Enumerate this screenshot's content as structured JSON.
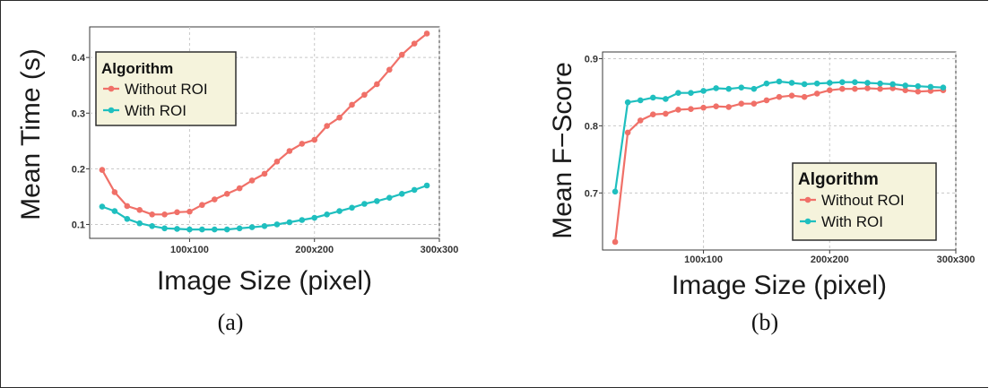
{
  "figure": {
    "colors": {
      "without_roi": "#f07068",
      "with_roi": "#1fbfbf",
      "legend_bg": "#f5f3dc",
      "grid": "#c8c8c8"
    }
  },
  "chart_data": [
    {
      "type": "line",
      "caption": "(a)",
      "xlabel": "Image Size (pixel)",
      "ylabel": "Mean Time (s)",
      "xlim": [
        20,
        300
      ],
      "ylim": [
        0.075,
        0.455
      ],
      "xticks": [
        100,
        200,
        300
      ],
      "xtick_labels": [
        "100x100",
        "200x200",
        "300x300"
      ],
      "yticks": [
        0.1,
        0.2,
        0.3,
        0.4
      ],
      "ytick_labels": [
        "0.1",
        "0.2",
        "0.3",
        "0.4"
      ],
      "grid": true,
      "legend": {
        "title": "Algorithm",
        "placement": "top-left"
      },
      "x": [
        30,
        40,
        50,
        60,
        70,
        80,
        90,
        100,
        110,
        120,
        130,
        140,
        150,
        160,
        170,
        180,
        190,
        200,
        210,
        220,
        230,
        240,
        250,
        260,
        270,
        280,
        290
      ],
      "series": [
        {
          "name": "Without ROI",
          "values": [
            0.198,
            0.158,
            0.133,
            0.126,
            0.118,
            0.118,
            0.122,
            0.123,
            0.135,
            0.145,
            0.155,
            0.165,
            0.179,
            0.191,
            0.213,
            0.232,
            0.245,
            0.252,
            0.277,
            0.292,
            0.315,
            0.333,
            0.352,
            0.378,
            0.405,
            0.425,
            0.443
          ]
        },
        {
          "name": "With ROI",
          "values": [
            0.132,
            0.124,
            0.11,
            0.102,
            0.097,
            0.093,
            0.092,
            0.091,
            0.091,
            0.091,
            0.091,
            0.093,
            0.095,
            0.097,
            0.1,
            0.104,
            0.108,
            0.112,
            0.118,
            0.124,
            0.13,
            0.137,
            0.142,
            0.148,
            0.155,
            0.162,
            0.17
          ]
        }
      ]
    },
    {
      "type": "line",
      "caption": "(b)",
      "xlabel": "Image Size (pixel)",
      "ylabel": "Mean F−Score",
      "xlim": [
        20,
        300
      ],
      "ylim": [
        0.615,
        0.91
      ],
      "xticks": [
        100,
        200,
        300
      ],
      "xtick_labels": [
        "100x100",
        "200x200",
        "300x300"
      ],
      "yticks": [
        0.7,
        0.8,
        0.9
      ],
      "ytick_labels": [
        "0.7",
        "0.8",
        "0.9"
      ],
      "grid": true,
      "legend": {
        "title": "Algorithm",
        "placement": "bottom-right"
      },
      "x": [
        30,
        40,
        50,
        60,
        70,
        80,
        90,
        100,
        110,
        120,
        130,
        140,
        150,
        160,
        170,
        180,
        190,
        200,
        210,
        220,
        230,
        240,
        250,
        260,
        270,
        280,
        290
      ],
      "series": [
        {
          "name": "Without ROI",
          "values": [
            0.627,
            0.79,
            0.808,
            0.817,
            0.818,
            0.824,
            0.825,
            0.827,
            0.829,
            0.828,
            0.833,
            0.833,
            0.838,
            0.843,
            0.845,
            0.843,
            0.848,
            0.853,
            0.855,
            0.855,
            0.856,
            0.855,
            0.856,
            0.853,
            0.851,
            0.852,
            0.853
          ]
        },
        {
          "name": "With ROI",
          "values": [
            0.702,
            0.835,
            0.838,
            0.842,
            0.84,
            0.849,
            0.849,
            0.852,
            0.856,
            0.855,
            0.857,
            0.855,
            0.863,
            0.866,
            0.864,
            0.862,
            0.863,
            0.864,
            0.865,
            0.865,
            0.864,
            0.863,
            0.862,
            0.86,
            0.859,
            0.858,
            0.857
          ]
        }
      ]
    }
  ]
}
